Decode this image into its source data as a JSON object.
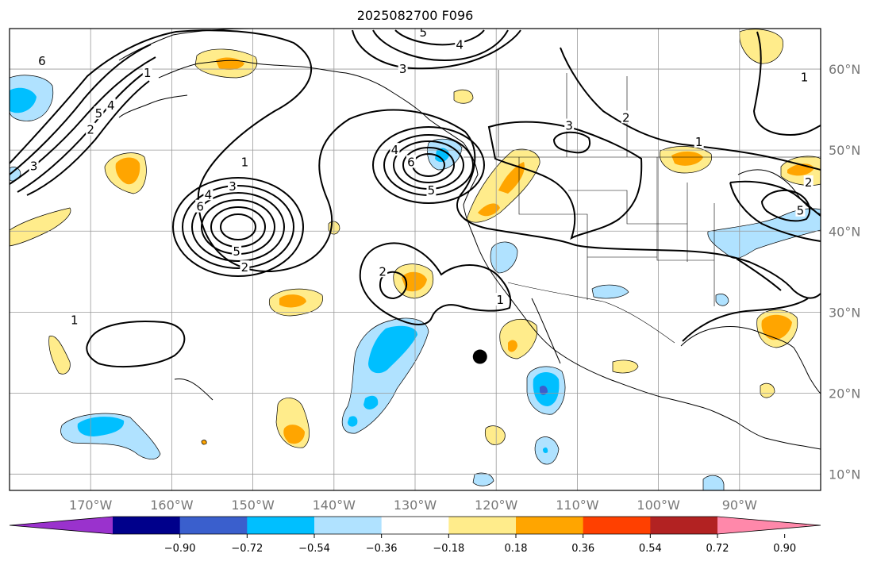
{
  "title": "2025082700 F096",
  "map": {
    "lon_range": [
      -180,
      -80
    ],
    "lat_range": [
      8,
      65
    ],
    "lon_ticks": [
      {
        "value": -170,
        "label": "170°W"
      },
      {
        "value": -160,
        "label": "160°W"
      },
      {
        "value": -150,
        "label": "150°W"
      },
      {
        "value": -140,
        "label": "140°W"
      },
      {
        "value": -130,
        "label": "130°W"
      },
      {
        "value": -120,
        "label": "120°W"
      },
      {
        "value": -110,
        "label": "110°W"
      },
      {
        "value": -100,
        "label": "100°W"
      },
      {
        "value": -90,
        "label": "90°W"
      }
    ],
    "lat_ticks": [
      {
        "value": 60,
        "label": "60°N"
      },
      {
        "value": 50,
        "label": "50°N"
      },
      {
        "value": 40,
        "label": "40°N"
      },
      {
        "value": 30,
        "label": "30°N"
      },
      {
        "value": 20,
        "label": "20°N"
      },
      {
        "value": 10,
        "label": "10°N"
      }
    ],
    "grid": true,
    "marker": {
      "lon": -122,
      "lat": 24.5
    },
    "contour_labels": [
      {
        "text": "6",
        "lon": -176,
        "lat": 61
      },
      {
        "text": "1",
        "lon": -163,
        "lat": 59.5
      },
      {
        "text": "5",
        "lon": -169,
        "lat": 54.5
      },
      {
        "text": "4",
        "lon": -167.5,
        "lat": 55.5
      },
      {
        "text": "2",
        "lon": -170,
        "lat": 52.5
      },
      {
        "text": "3",
        "lon": -177,
        "lat": 48
      },
      {
        "text": "5",
        "lon": -129,
        "lat": 64.5
      },
      {
        "text": "4",
        "lon": -124.5,
        "lat": 63
      },
      {
        "text": "3",
        "lon": -131.5,
        "lat": 60
      },
      {
        "text": "1",
        "lon": -151,
        "lat": 48.5
      },
      {
        "text": "4",
        "lon": -155.5,
        "lat": 44.5
      },
      {
        "text": "3",
        "lon": -152.5,
        "lat": 45.5
      },
      {
        "text": "6",
        "lon": -156.5,
        "lat": 43
      },
      {
        "text": "5",
        "lon": -152,
        "lat": 37.5
      },
      {
        "text": "2",
        "lon": -151,
        "lat": 35.5
      },
      {
        "text": "4",
        "lon": -132.5,
        "lat": 50
      },
      {
        "text": "6",
        "lon": -130.5,
        "lat": 48.5
      },
      {
        "text": "5",
        "lon": -128,
        "lat": 45
      },
      {
        "text": "2",
        "lon": -134,
        "lat": 35
      },
      {
        "text": "1",
        "lon": -119.5,
        "lat": 31.5
      },
      {
        "text": "1",
        "lon": -172,
        "lat": 29
      },
      {
        "text": "3",
        "lon": -111,
        "lat": 53
      },
      {
        "text": "2",
        "lon": -104,
        "lat": 54
      },
      {
        "text": "1",
        "lon": -82,
        "lat": 59
      },
      {
        "text": "1",
        "lon": -95,
        "lat": 51
      },
      {
        "text": "2",
        "lon": -81.5,
        "lat": 46
      },
      {
        "text": "5",
        "lon": -82.5,
        "lat": 42.5
      }
    ]
  },
  "colorbar": {
    "ticks": [
      "−0.90",
      "−0.72",
      "−0.54",
      "−0.36",
      "−0.18",
      "0.18",
      "0.36",
      "0.54",
      "0.72",
      "0.90"
    ],
    "colors": [
      "#9a32cd",
      "#00008b",
      "#3a5fcd",
      "#00bfff",
      "#b0e2ff",
      "#ffffff",
      "#ffec8b",
      "#ffa500",
      "#ff4000",
      "#b22222",
      "#ff88aa"
    ],
    "extend": "both"
  }
}
